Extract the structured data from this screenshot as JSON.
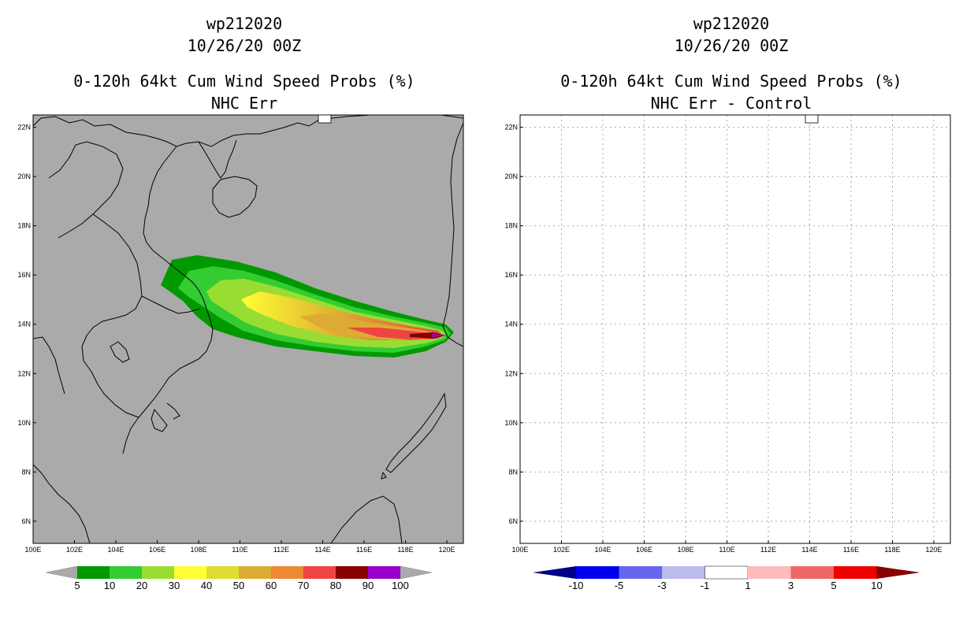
{
  "left_panel": {
    "title_line1": "wp212020",
    "title_line2": "10/26/20 00Z",
    "title_line3": "0-120h 64kt Cum Wind Speed Probs (%)",
    "title_line4": "NHC Err",
    "background_color": "#aaaaaa",
    "colorbar": {
      "labels": [
        "5",
        "10",
        "20",
        "30",
        "40",
        "50",
        "60",
        "70",
        "80",
        "90",
        "100"
      ],
      "colors": [
        "#009900",
        "#33cc33",
        "#99dd33",
        "#ffff33",
        "#dddd33",
        "#ddaa33",
        "#ee8833",
        "#ee4444",
        "#880000",
        "#9900cc"
      ],
      "end_color": "#aaaaaa"
    }
  },
  "right_panel": {
    "title_line1": "wp212020",
    "title_line2": "10/26/20 00Z",
    "title_line3": "0-120h 64kt Cum Wind Speed Probs (%)",
    "title_line4": "NHC Err - Control",
    "background_color": "#ffffff",
    "colorbar": {
      "labels": [
        "-10",
        "-5",
        "-3",
        "-1",
        "1",
        "3",
        "5",
        "10"
      ],
      "colors": [
        "#0000ee",
        "#6666ee",
        "#bbbbee",
        "#ffffff",
        "#ffbbbb",
        "#ee6666",
        "#ee0000"
      ],
      "end_left": "#000088",
      "end_right": "#880000"
    }
  },
  "map": {
    "lon_labels": [
      "100E",
      "102E",
      "104E",
      "106E",
      "108E",
      "110E",
      "112E",
      "114E",
      "116E",
      "118E",
      "120E"
    ],
    "lat_labels": [
      "22N",
      "20N",
      "18N",
      "16N",
      "14N",
      "12N",
      "10N",
      "8N",
      "6N"
    ],
    "lon_values": [
      100,
      102,
      104,
      106,
      108,
      110,
      112,
      114,
      116,
      118,
      120
    ],
    "lat_values": [
      22,
      20,
      18,
      16,
      14,
      12,
      10,
      8,
      6
    ],
    "lon_range": [
      100,
      120.8
    ],
    "lat_range": [
      5.1,
      22.5
    ]
  }
}
